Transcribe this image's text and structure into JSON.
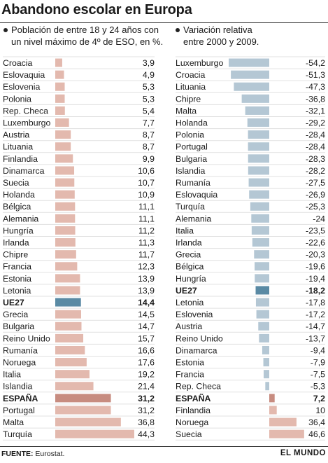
{
  "header": {
    "title": "Abandono escolar en Europa"
  },
  "left": {
    "subtitle_line1": "Población de entre 18 y 24 años con",
    "subtitle_line2": "un nivel máximo de 4º de ESO, en %."
  },
  "right": {
    "subtitle_line1": "Variación relativa",
    "subtitle_line2": "entre 2000 y 2009."
  },
  "footer": {
    "source_label": "FUENTE:",
    "source_text": "Eurostat.",
    "brand": "EL MUNDO"
  },
  "colors": {
    "bar": "#b4c7d4",
    "ue27": "#5a8aa4",
    "espana": "#c78c80",
    "positive": "#e3b9ae",
    "text": "#1a1a1a"
  },
  "chart_data": [
    {
      "type": "bar",
      "orientation": "horizontal",
      "unit": "%",
      "categories": [
        "Croacia",
        "Eslovaquia",
        "Eslovenia",
        "Polonia",
        "Rep. Checa",
        "Luxemburgo",
        "Austria",
        "Lituania",
        "Finlandia",
        "Dinamarca",
        "Suecia",
        "Holanda",
        "Bélgica",
        "Alemania",
        "Hungría",
        "Irlanda",
        "Chipre",
        "Francia",
        "Estonia",
        "Letonia",
        "UE27",
        "Grecia",
        "Bulgaria",
        "Reino Unido",
        "Rumanía",
        "Noruega",
        "Italia",
        "Islandia",
        "ESPAÑA",
        "Portugal",
        "Malta",
        "Turquía"
      ],
      "values": [
        3.9,
        4.9,
        5.3,
        5.3,
        5.4,
        7.7,
        8.7,
        8.7,
        9.9,
        10.6,
        10.7,
        10.9,
        11.1,
        11.1,
        11.2,
        11.3,
        11.7,
        12.3,
        13.9,
        13.9,
        14.4,
        14.5,
        14.7,
        15.7,
        16.6,
        17.6,
        19.2,
        21.4,
        31.2,
        31.2,
        36.8,
        44.3
      ],
      "labels": [
        "3,9",
        "4,9",
        "5,3",
        "5,3",
        "5,4",
        "7,7",
        "8,7",
        "8,7",
        "9,9",
        "10,6",
        "10,7",
        "10,9",
        "11,1",
        "11,1",
        "11,2",
        "11,3",
        "11,7",
        "12,3",
        "13,9",
        "13,9",
        "14,4",
        "14,5",
        "14,7",
        "15,7",
        "16,6",
        "17,6",
        "19,2",
        "21,4",
        "31,2",
        "31,2",
        "36,8",
        "44,3"
      ],
      "highlight": [
        "UE27",
        "ESPAÑA"
      ]
    },
    {
      "type": "bar",
      "orientation": "horizontal",
      "unit": "%",
      "categories": [
        "Luxemburgo",
        "Croacia",
        "Lituania",
        "Chipre",
        "Malta",
        "Holanda",
        "Polonia",
        "Portugal",
        "Bulgaria",
        "Islandia",
        "Rumanía",
        "Eslovaquia",
        "Turquía",
        "Alemania",
        "Italia",
        "Irlanda",
        "Grecia",
        "Bélgica",
        "Hungría",
        "UE27",
        "Letonia",
        "Eslovenia",
        "Austria",
        "Reino Unido",
        "Dinamarca",
        "Estonia",
        "Francia",
        "Rep. Checa",
        "ESPAÑA",
        "Finlandia",
        "Noruega",
        "Suecia"
      ],
      "values": [
        -54.2,
        -51.3,
        -47.3,
        -36.8,
        -32.1,
        -29.2,
        -28.4,
        -28.4,
        -28.3,
        -28.2,
        -27.5,
        -26.9,
        -25.3,
        -24,
        -23.5,
        -22.6,
        -20.3,
        -19.6,
        -19.4,
        -18.2,
        -17.8,
        -17.2,
        -14.7,
        -13.7,
        -9.4,
        -7.9,
        -7.5,
        -5.3,
        7.2,
        10,
        36.4,
        46.6
      ],
      "labels": [
        "-54,2",
        "-51,3",
        "-47,3",
        "-36,8",
        "-32,1",
        "-29,2",
        "-28,4",
        "-28,4",
        "-28,3",
        "-28,2",
        "-27,5",
        "-26,9",
        "-25,3",
        "-24",
        "-23,5",
        "-22,6",
        "-20,3",
        "-19,6",
        "-19,4",
        "-18,2",
        "-17,8",
        "-17,2",
        "-14,7",
        "-13,7",
        "-9,4",
        "-7,9",
        "-7,5",
        "-5,3",
        "7,2",
        "10",
        "36,4",
        "46,6"
      ],
      "highlight": [
        "UE27",
        "ESPAÑA"
      ]
    }
  ]
}
